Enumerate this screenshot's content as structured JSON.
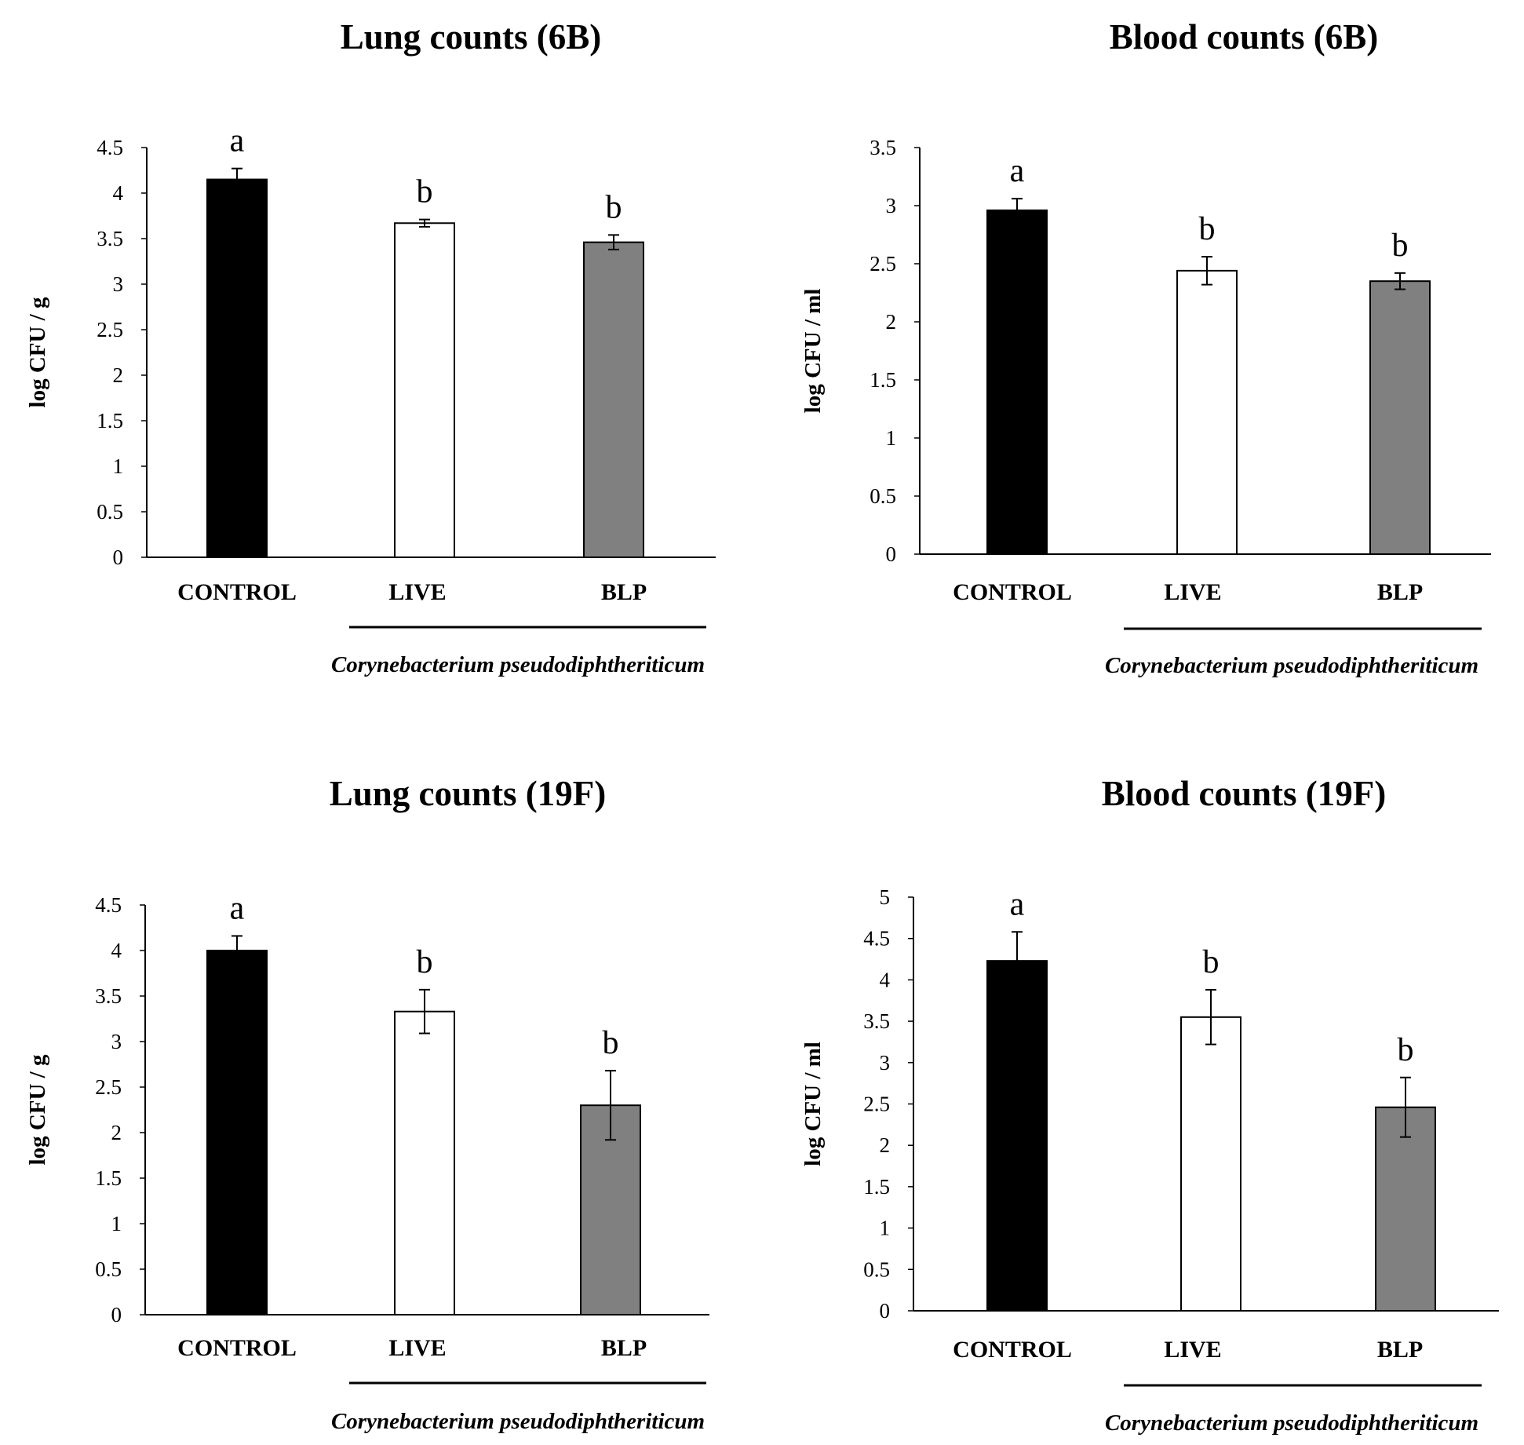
{
  "chart_data": [
    {
      "type": "bar",
      "title": "Lung counts (6B)",
      "ylabel": "log CFU / g",
      "ylim": [
        0,
        4.5
      ],
      "yticks": [
        "0",
        "0.5",
        "1",
        "1.5",
        "2",
        "2.5",
        "3",
        "3.5",
        "4",
        "4.5"
      ],
      "categories": [
        "CONTROL",
        "LIVE",
        "BLP"
      ],
      "values": [
        4.15,
        3.67,
        3.46
      ],
      "errors": [
        0.12,
        0.04,
        0.08
      ],
      "significance": [
        "a",
        "b",
        "b"
      ],
      "colors": [
        "#000000",
        "#ffffff",
        "#808080"
      ],
      "group_label": "Corynebacterium pseudodiphtheriticum"
    },
    {
      "type": "bar",
      "title": "Blood counts (6B)",
      "ylabel": "log CFU / ml",
      "ylim": [
        0,
        3.5
      ],
      "yticks": [
        "0",
        "0.5",
        "1",
        "1.5",
        "2",
        "2.5",
        "3",
        "3.5"
      ],
      "categories": [
        "CONTROL",
        "LIVE",
        "BLP"
      ],
      "values": [
        2.96,
        2.44,
        2.35
      ],
      "errors": [
        0.1,
        0.12,
        0.07
      ],
      "significance": [
        "a",
        "b",
        "b"
      ],
      "colors": [
        "#000000",
        "#ffffff",
        "#808080"
      ],
      "group_label": "Corynebacterium pseudodiphtheriticum"
    },
    {
      "type": "bar",
      "title": "Lung counts (19F)",
      "ylabel": "log CFU / g",
      "ylim": [
        0,
        4.5
      ],
      "yticks": [
        "0",
        "0.5",
        "1",
        "1.5",
        "2",
        "2.5",
        "3",
        "3.5",
        "4",
        "4.5"
      ],
      "categories": [
        "CONTROL",
        "LIVE",
        "BLP"
      ],
      "values": [
        4.0,
        3.33,
        2.3
      ],
      "errors": [
        0.16,
        0.24,
        0.38
      ],
      "significance": [
        "a",
        "b",
        "b"
      ],
      "colors": [
        "#000000",
        "#ffffff",
        "#808080"
      ],
      "group_label": "Corynebacterium pseudodiphtheriticum"
    },
    {
      "type": "bar",
      "title": "Blood counts (19F)",
      "ylabel": "log CFU / ml",
      "ylim": [
        0,
        5
      ],
      "yticks": [
        "0",
        "0.5",
        "1",
        "1.5",
        "2",
        "2.5",
        "3",
        "3.5",
        "4",
        "4.5",
        "5"
      ],
      "categories": [
        "CONTROL",
        "LIVE",
        "BLP"
      ],
      "values": [
        4.23,
        3.55,
        2.46
      ],
      "errors": [
        0.35,
        0.33,
        0.36
      ],
      "significance": [
        "a",
        "b",
        "b"
      ],
      "colors": [
        "#000000",
        "#ffffff",
        "#808080"
      ],
      "group_label": "Corynebacterium pseudodiphtheriticum"
    }
  ]
}
